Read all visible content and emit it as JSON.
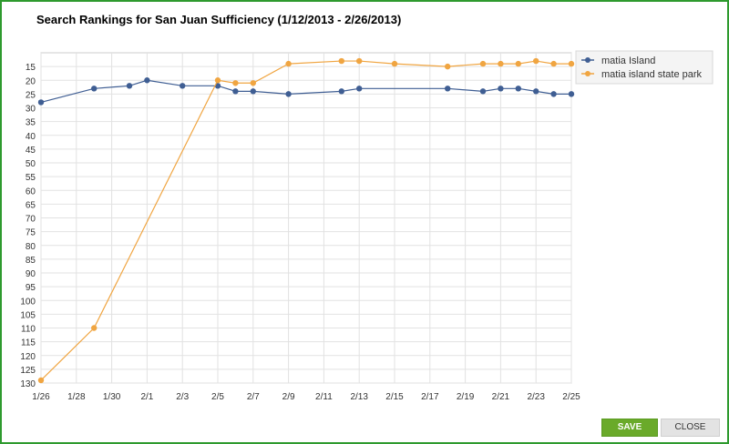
{
  "dialog": {
    "save_label": "SAVE",
    "close_label": "CLOSE"
  },
  "chart_data": {
    "type": "line",
    "title": "Search Rankings for San Juan Sufficiency (1/12/2013 - 2/26/2013)",
    "xlabel": "",
    "ylabel": "",
    "y_reversed": true,
    "ylim": [
      130,
      10
    ],
    "yticks": [
      15,
      20,
      25,
      30,
      35,
      40,
      45,
      50,
      55,
      60,
      65,
      70,
      75,
      80,
      85,
      90,
      95,
      100,
      105,
      110,
      115,
      120,
      125,
      130
    ],
    "xticks": [
      "1/26",
      "1/28",
      "1/30",
      "2/1",
      "2/3",
      "2/5",
      "2/7",
      "2/9",
      "2/11",
      "2/13",
      "2/15",
      "2/17",
      "2/19",
      "2/21",
      "2/23",
      "2/25"
    ],
    "grid": true,
    "legend_position": "right",
    "series": [
      {
        "name": "matia Island",
        "color": "#3f5e93",
        "points": [
          [
            "1/26",
            28
          ],
          [
            "1/29",
            23
          ],
          [
            "1/31",
            22
          ],
          [
            "2/1",
            20
          ],
          [
            "2/3",
            22
          ],
          [
            "2/5",
            22
          ],
          [
            "2/6",
            24
          ],
          [
            "2/7",
            24
          ],
          [
            "2/9",
            25
          ],
          [
            "2/12",
            24
          ],
          [
            "2/13",
            23
          ],
          [
            "2/18",
            23
          ],
          [
            "2/20",
            24
          ],
          [
            "2/21",
            23
          ],
          [
            "2/22",
            23
          ],
          [
            "2/23",
            24
          ],
          [
            "2/24",
            25
          ],
          [
            "2/25",
            25
          ]
        ]
      },
      {
        "name": "matia island state park",
        "color": "#f0a541",
        "points": [
          [
            "1/26",
            129
          ],
          [
            "1/29",
            110
          ],
          [
            "2/5",
            20
          ],
          [
            "2/6",
            21
          ],
          [
            "2/7",
            21
          ],
          [
            "2/9",
            14
          ],
          [
            "2/12",
            13
          ],
          [
            "2/13",
            13
          ],
          [
            "2/15",
            14
          ],
          [
            "2/18",
            15
          ],
          [
            "2/20",
            14
          ],
          [
            "2/21",
            14
          ],
          [
            "2/22",
            14
          ],
          [
            "2/23",
            13
          ],
          [
            "2/24",
            14
          ],
          [
            "2/25",
            14
          ]
        ]
      }
    ]
  }
}
